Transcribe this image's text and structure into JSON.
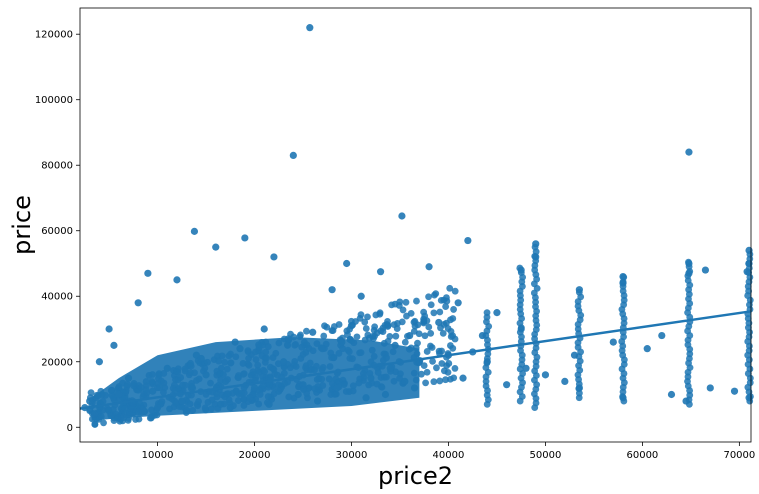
{
  "chart_data": {
    "type": "scatter",
    "title": "",
    "xlabel": "price2",
    "ylabel": "price",
    "xlim": [
      2000,
      71200
    ],
    "ylim": [
      -4500,
      128000
    ],
    "xticks": [
      10000,
      20000,
      30000,
      40000,
      50000,
      60000,
      70000
    ],
    "yticks": [
      0,
      20000,
      40000,
      60000,
      80000,
      100000,
      120000
    ],
    "grid": false,
    "legend": "none",
    "colors": {
      "points": "#1f77b4",
      "line": "#1f77b4",
      "axes": "#000000"
    },
    "regression_line": {
      "x": [
        2000,
        71200
      ],
      "y": [
        5700,
        35400
      ]
    },
    "points": {
      "x": [
        25700,
        24000,
        64800,
        35200,
        42000,
        13800,
        19000,
        16000,
        22000,
        9000,
        29500,
        33000,
        38000,
        49000,
        49000,
        47500,
        53500,
        58000,
        58000,
        64800,
        64800,
        66500,
        70800,
        71000,
        71000,
        62000,
        60500,
        57000,
        47500,
        43500,
        41000,
        45000,
        39000,
        28000,
        31000,
        12000,
        8000,
        5000,
        5500,
        4000,
        3000,
        3500,
        7000,
        6000,
        2500,
        14000,
        18000,
        21000,
        26000,
        30000,
        36000,
        27000,
        23000,
        11000,
        15000,
        17000,
        20000,
        24500,
        32000,
        34000,
        37000,
        40000,
        44000,
        48000,
        50000,
        52000,
        53500,
        58000,
        63000,
        64500,
        67000,
        69500,
        71000,
        41500,
        46000,
        10000,
        12500,
        16500,
        19500,
        22500,
        25000,
        28500,
        33500,
        35500,
        8500,
        6500,
        13000,
        17500,
        21500,
        26500,
        31500,
        36500,
        9500,
        14500,
        18500,
        23500,
        29000,
        34500,
        42500,
        53000
      ],
      "y": [
        122000,
        83000,
        84000,
        64500,
        57000,
        59800,
        57800,
        55000,
        52000,
        47000,
        50000,
        47500,
        49000,
        56000,
        52000,
        48000,
        42000,
        46000,
        44000,
        50000,
        47000,
        48000,
        47500,
        54000,
        50000,
        28000,
        24000,
        26000,
        30000,
        28000,
        38000,
        35000,
        32000,
        42000,
        40000,
        45000,
        38000,
        30000,
        25000,
        20000,
        8000,
        4000,
        15000,
        10000,
        6000,
        22000,
        26000,
        30000,
        29000,
        31000,
        28000,
        24000,
        20000,
        18000,
        16000,
        14000,
        12000,
        10000,
        15000,
        18000,
        20000,
        22000,
        20000,
        18000,
        16000,
        14000,
        12000,
        9000,
        10000,
        8000,
        12000,
        11000,
        9000,
        15000,
        13000,
        6000,
        8000,
        7000,
        9000,
        11000,
        13000,
        12000,
        10000,
        14000,
        5000,
        3000,
        5000,
        6000,
        7000,
        8000,
        9000,
        12000,
        11000,
        21000,
        24000,
        27000,
        26000,
        25000,
        23000,
        22000
      ]
    }
  }
}
